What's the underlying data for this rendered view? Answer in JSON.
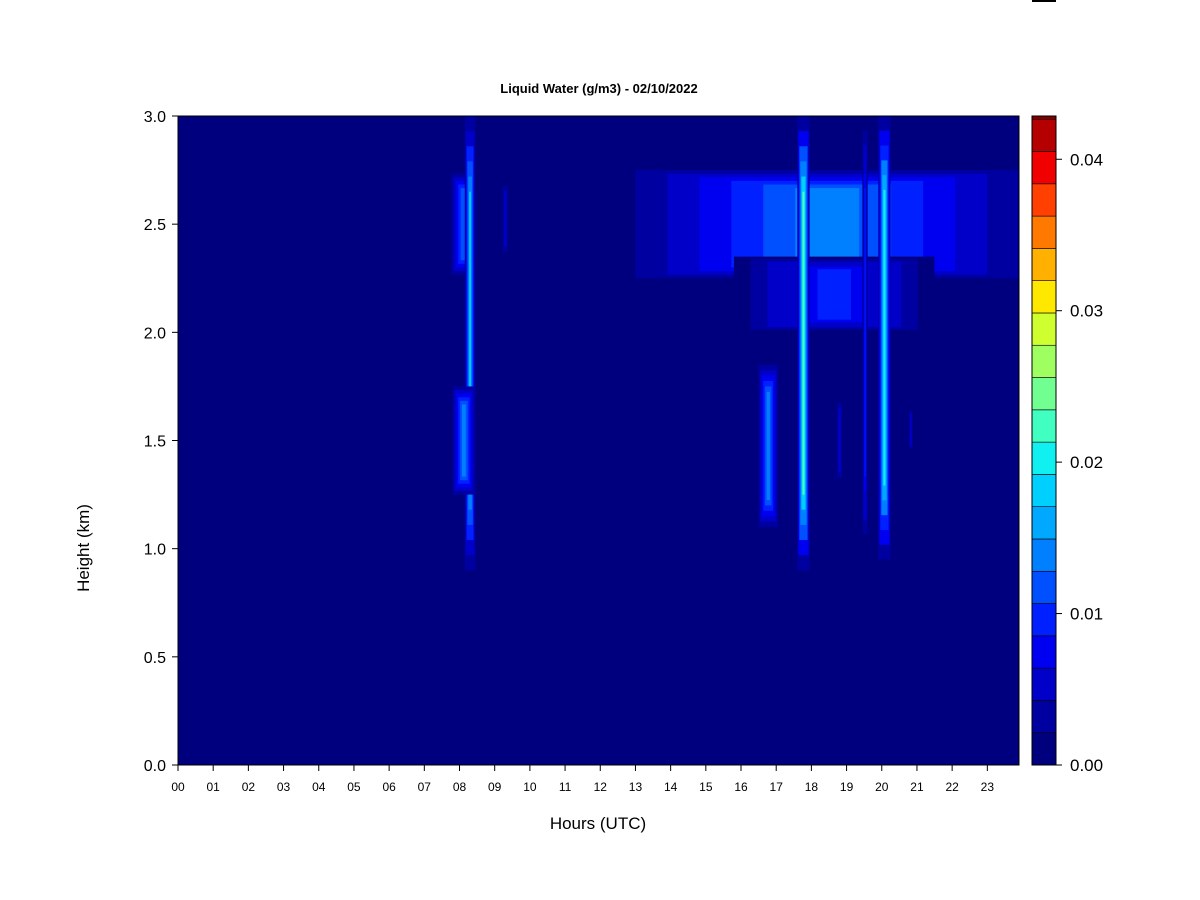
{
  "chart_data": {
    "type": "heatmap",
    "title": "Liquid Water (g/m3) - 02/10/2022",
    "xlabel": "Hours (UTC)",
    "ylabel": "Height (km)",
    "xlim": [
      0,
      23.9
    ],
    "ylim": [
      0,
      3.0
    ],
    "x_ticks": [
      "00",
      "01",
      "02",
      "03",
      "04",
      "05",
      "06",
      "07",
      "08",
      "09",
      "10",
      "11",
      "12",
      "13",
      "14",
      "15",
      "16",
      "17",
      "18",
      "19",
      "20",
      "21",
      "22",
      "23"
    ],
    "y_ticks": [
      "0.0",
      "0.5",
      "1.0",
      "1.5",
      "2.0",
      "2.5",
      "3.0"
    ],
    "colorbar": {
      "min": 0.0,
      "max": 0.042,
      "levels": 20,
      "tick_values": [
        0.0,
        0.01,
        0.02,
        0.03,
        0.04
      ],
      "tick_labels": [
        "0.00",
        "0.01",
        "0.02",
        "0.03",
        "0.04"
      ],
      "colors": [
        "#00007F",
        "#0000A0",
        "#0000C8",
        "#0000F0",
        "#0020FF",
        "#0050FF",
        "#0080FF",
        "#00A8FF",
        "#00D0FF",
        "#10F0F0",
        "#40FFC0",
        "#70FF90",
        "#A0FF60",
        "#D0FF30",
        "#FFE800",
        "#FFB000",
        "#FF7800",
        "#FF4000",
        "#F00000",
        "#B40000",
        "#800000"
      ]
    },
    "background_value": 0.0,
    "features": [
      {
        "x": [
          7.7,
          8.5
        ],
        "y": [
          2.25,
          2.75
        ],
        "peak": 0.012
      },
      {
        "x": [
          8.15,
          8.45
        ],
        "y": [
          0.9,
          3.0
        ],
        "peak": 0.017
      },
      {
        "x": [
          7.8,
          8.45
        ],
        "y": [
          1.25,
          1.75
        ],
        "peak": 0.014
      },
      {
        "x": [
          9.2,
          9.4
        ],
        "y": [
          2.35,
          2.7
        ],
        "peak": 0.006
      },
      {
        "x": [
          13.0,
          23.9
        ],
        "y": [
          2.25,
          2.75
        ],
        "peak": 0.013
      },
      {
        "x": [
          15.8,
          21.5
        ],
        "y": [
          2.0,
          2.35
        ],
        "peak": 0.009
      },
      {
        "x": [
          16.5,
          17.05
        ],
        "y": [
          1.1,
          1.85
        ],
        "peak": 0.014
      },
      {
        "x": [
          17.6,
          17.95
        ],
        "y": [
          0.9,
          3.0
        ],
        "peak": 0.022
      },
      {
        "x": [
          18.7,
          18.9
        ],
        "y": [
          1.3,
          1.7
        ],
        "peak": 0.006
      },
      {
        "x": [
          19.45,
          19.6
        ],
        "y": [
          1.0,
          3.0
        ],
        "peak": 0.009
      },
      {
        "x": [
          19.9,
          20.25
        ],
        "y": [
          0.95,
          3.0
        ],
        "peak": 0.02
      },
      {
        "x": [
          20.75,
          20.9
        ],
        "y": [
          1.45,
          1.65
        ],
        "peak": 0.006
      }
    ]
  }
}
